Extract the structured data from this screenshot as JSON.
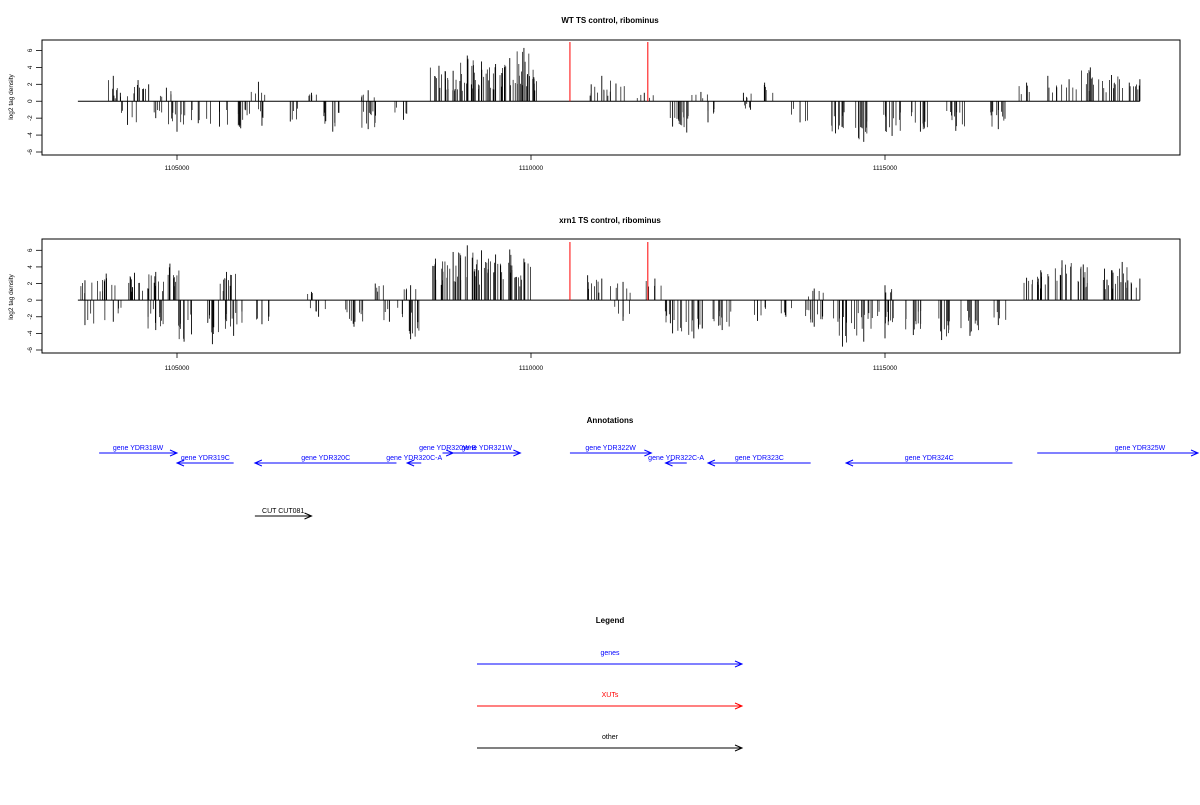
{
  "chart_data": [
    {
      "type": "bar",
      "title": "WT TS control, ribominus",
      "ylabel": "log2 tag density",
      "xlabel": "",
      "xlim": [
        1102800,
        1119000
      ],
      "ylim": [
        -6,
        7
      ],
      "yticks": [
        "-6",
        "-4",
        "-2",
        "0",
        "2",
        "4",
        "6"
      ],
      "xticks": [
        "1105000",
        "1110000",
        "1115000"
      ],
      "axis_range": [
        1103600,
        1118600
      ],
      "grid": false,
      "series": [
        {
          "values_sense": [
            {
              "x": 1104100,
              "y": 3.0
            },
            {
              "x": 1104200,
              "y": 1.0
            },
            {
              "x": 1104450,
              "y": 2.5
            },
            {
              "x": 1104600,
              "y": 2.0
            },
            {
              "x": 1104850,
              "y": 1.6
            },
            {
              "x": 1106150,
              "y": 2.3
            },
            {
              "x": 1106900,
              "y": 1.0
            },
            {
              "x": 1107700,
              "y": 1.3
            },
            {
              "x": 1108700,
              "y": 4.2
            },
            {
              "x": 1108900,
              "y": 3.6
            },
            {
              "x": 1109100,
              "y": 5.4
            },
            {
              "x": 1109300,
              "y": 4.7
            },
            {
              "x": 1109500,
              "y": 4.4
            },
            {
              "x": 1109700,
              "y": 5.1
            },
            {
              "x": 1109900,
              "y": 6.3
            },
            {
              "x": 1109950,
              "y": 3.2
            },
            {
              "x": 1110850,
              "y": 2.0
            },
            {
              "x": 1111000,
              "y": 3.0
            },
            {
              "x": 1111200,
              "y": 2.1
            },
            {
              "x": 1111600,
              "y": 1.0
            },
            {
              "x": 1112400,
              "y": 1.1
            },
            {
              "x": 1113000,
              "y": 1.0
            },
            {
              "x": 1113300,
              "y": 2.2
            },
            {
              "x": 1117000,
              "y": 2.2
            },
            {
              "x": 1117300,
              "y": 3.0
            },
            {
              "x": 1117600,
              "y": 2.6
            },
            {
              "x": 1117900,
              "y": 4.0
            },
            {
              "x": 1118200,
              "y": 3.1
            },
            {
              "x": 1118450,
              "y": 2.2
            },
            {
              "x": 1118600,
              "y": 2.6
            }
          ],
          "values_antisense": [
            {
              "x": 1104300,
              "y": -2.8
            },
            {
              "x": 1104700,
              "y": -2.0
            },
            {
              "x": 1105000,
              "y": -3.6
            },
            {
              "x": 1105300,
              "y": -2.6
            },
            {
              "x": 1105600,
              "y": -3.0
            },
            {
              "x": 1105900,
              "y": -3.2
            },
            {
              "x": 1106200,
              "y": -2.9
            },
            {
              "x": 1106600,
              "y": -2.4
            },
            {
              "x": 1107200,
              "y": -3.6
            },
            {
              "x": 1107700,
              "y": -3.3
            },
            {
              "x": 1108200,
              "y": -2.2
            },
            {
              "x": 1112000,
              "y": -3.0
            },
            {
              "x": 1112200,
              "y": -3.7
            },
            {
              "x": 1112500,
              "y": -2.5
            },
            {
              "x": 1113100,
              "y": -1.0
            },
            {
              "x": 1113800,
              "y": -2.5
            },
            {
              "x": 1114300,
              "y": -3.8
            },
            {
              "x": 1114700,
              "y": -4.8
            },
            {
              "x": 1115100,
              "y": -4.1
            },
            {
              "x": 1115500,
              "y": -3.6
            },
            {
              "x": 1116000,
              "y": -3.5
            },
            {
              "x": 1116600,
              "y": -3.3
            }
          ]
        }
      ],
      "markers": [
        {
          "x": 1110550,
          "y": 7,
          "color": "#ff0000"
        },
        {
          "x": 1111650,
          "y": 7,
          "color": "#ff0000"
        }
      ]
    },
    {
      "type": "bar",
      "title": "xrn1 TS control, ribominus",
      "ylabel": "log2 tag density",
      "xlabel": "",
      "xlim": [
        1102800,
        1119000
      ],
      "ylim": [
        -6,
        7
      ],
      "yticks": [
        "-6",
        "-4",
        "-2",
        "0",
        "2",
        "4",
        "6"
      ],
      "xticks": [
        "1105000",
        "1110000",
        "1115000"
      ],
      "axis_range": [
        1103600,
        1118600
      ],
      "grid": false,
      "series": [
        {
          "values_sense": [
            {
              "x": 1103700,
              "y": 2.4
            },
            {
              "x": 1104000,
              "y": 3.2
            },
            {
              "x": 1104400,
              "y": 3.3
            },
            {
              "x": 1104700,
              "y": 3.4
            },
            {
              "x": 1104900,
              "y": 4.4
            },
            {
              "x": 1105700,
              "y": 3.4
            },
            {
              "x": 1106900,
              "y": 1.0
            },
            {
              "x": 1107800,
              "y": 2.0
            },
            {
              "x": 1108300,
              "y": 1.8
            },
            {
              "x": 1108650,
              "y": 5.0
            },
            {
              "x": 1108900,
              "y": 5.8
            },
            {
              "x": 1109100,
              "y": 6.6
            },
            {
              "x": 1109300,
              "y": 6.0
            },
            {
              "x": 1109500,
              "y": 5.5
            },
            {
              "x": 1109700,
              "y": 6.1
            },
            {
              "x": 1109900,
              "y": 5.0
            },
            {
              "x": 1110800,
              "y": 3.0
            },
            {
              "x": 1111000,
              "y": 2.6
            },
            {
              "x": 1111300,
              "y": 2.2
            },
            {
              "x": 1111750,
              "y": 2.6
            },
            {
              "x": 1114000,
              "y": 1.4
            },
            {
              "x": 1115000,
              "y": 1.8
            },
            {
              "x": 1117000,
              "y": 2.7
            },
            {
              "x": 1117200,
              "y": 3.6
            },
            {
              "x": 1117500,
              "y": 4.8
            },
            {
              "x": 1117800,
              "y": 4.3
            },
            {
              "x": 1118100,
              "y": 3.8
            },
            {
              "x": 1118350,
              "y": 4.6
            },
            {
              "x": 1118600,
              "y": 2.6
            }
          ],
          "values_antisense": [
            {
              "x": 1103700,
              "y": -3.0
            },
            {
              "x": 1104100,
              "y": -2.6
            },
            {
              "x": 1104700,
              "y": -3.6
            },
            {
              "x": 1105100,
              "y": -5.0
            },
            {
              "x": 1105500,
              "y": -5.3
            },
            {
              "x": 1105800,
              "y": -4.3
            },
            {
              "x": 1106200,
              "y": -2.9
            },
            {
              "x": 1107000,
              "y": -2.0
            },
            {
              "x": 1107500,
              "y": -3.2
            },
            {
              "x": 1108000,
              "y": -2.6
            },
            {
              "x": 1108300,
              "y": -4.7
            },
            {
              "x": 1111300,
              "y": -2.5
            },
            {
              "x": 1112000,
              "y": -4.0
            },
            {
              "x": 1112300,
              "y": -4.6
            },
            {
              "x": 1112700,
              "y": -3.6
            },
            {
              "x": 1113200,
              "y": -2.5
            },
            {
              "x": 1113600,
              "y": -2.0
            },
            {
              "x": 1114000,
              "y": -3.2
            },
            {
              "x": 1114400,
              "y": -5.6
            },
            {
              "x": 1114700,
              "y": -5.0
            },
            {
              "x": 1115000,
              "y": -4.6
            },
            {
              "x": 1115400,
              "y": -4.2
            },
            {
              "x": 1115800,
              "y": -4.8
            },
            {
              "x": 1116200,
              "y": -4.3
            },
            {
              "x": 1116600,
              "y": -3.0
            }
          ]
        }
      ],
      "markers": [
        {
          "x": 1110550,
          "y": 7,
          "color": "#ff0000"
        },
        {
          "x": 1111650,
          "y": 7,
          "color": "#ff0000"
        }
      ]
    }
  ],
  "annotations": {
    "title": "Annotations",
    "features": [
      {
        "label": "gene YDR318W",
        "start": 1103900,
        "end": 1105000,
        "strand": "+",
        "row": 0,
        "color": "#0000ff"
      },
      {
        "label": "gene YDR319C",
        "start": 1105000,
        "end": 1105800,
        "strand": "-",
        "row": 1,
        "color": "#0000ff"
      },
      {
        "label": "gene YDR320C",
        "start": 1106100,
        "end": 1108100,
        "strand": "-",
        "row": 1,
        "color": "#0000ff"
      },
      {
        "label": "gene YDR320W-B",
        "start": 1108750,
        "end": 1108900,
        "strand": "+",
        "row": 0,
        "color": "#0000ff"
      },
      {
        "label": "gene YDR320C-A",
        "start": 1108250,
        "end": 1108450,
        "strand": "-",
        "row": 1,
        "color": "#0000ff"
      },
      {
        "label": "gene YDR321W",
        "start": 1108900,
        "end": 1109850,
        "strand": "+",
        "row": 0,
        "color": "#0000ff"
      },
      {
        "label": "gene YDR322W",
        "start": 1110550,
        "end": 1111700,
        "strand": "+",
        "row": 0,
        "color": "#0000ff"
      },
      {
        "label": "gene YDR322C-A",
        "start": 1111900,
        "end": 1112200,
        "strand": "-",
        "row": 1,
        "color": "#0000ff"
      },
      {
        "label": "gene YDR323C",
        "start": 1112500,
        "end": 1113950,
        "strand": "-",
        "row": 1,
        "color": "#0000ff"
      },
      {
        "label": "gene YDR324C",
        "start": 1114450,
        "end": 1116800,
        "strand": "-",
        "row": 1,
        "color": "#0000ff"
      },
      {
        "label": "gene YDR325W",
        "start": 1117150,
        "end": 1119700,
        "strand": "+",
        "row": 0,
        "color": "#0000ff"
      },
      {
        "label": "CUT CUT081",
        "start": 1106100,
        "end": 1106900,
        "strand": "+",
        "row": 2,
        "color": "#000000"
      }
    ]
  },
  "legend": {
    "title": "Legend",
    "items": [
      {
        "label": "genes",
        "color": "#0000ff"
      },
      {
        "label": "XUTs",
        "color": "#ff0000"
      },
      {
        "label": "other",
        "color": "#000000"
      }
    ]
  }
}
